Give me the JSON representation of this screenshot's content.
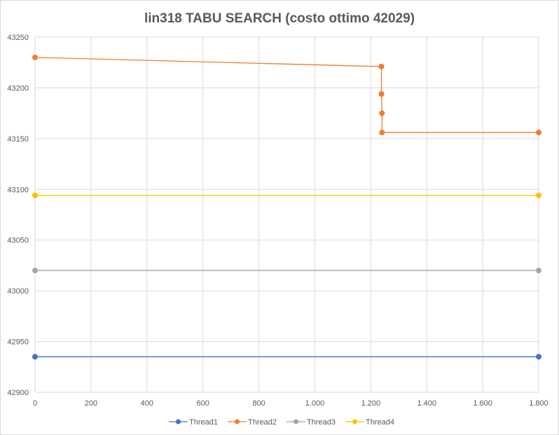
{
  "chart_data": {
    "type": "scatter",
    "title": "lin318 TABU SEARCH (costo ottimo 42029)",
    "xlabel": "",
    "ylabel": "",
    "xlim": [
      0,
      1800
    ],
    "ylim": [
      42900,
      43250
    ],
    "x_ticks": [
      0,
      200,
      400,
      600,
      800,
      1000,
      1200,
      1400,
      1600,
      1800
    ],
    "x_tick_labels": [
      "0",
      "200",
      "400",
      "600",
      "800",
      "1.000",
      "1.200",
      "1.400",
      "1.600",
      "1.800"
    ],
    "y_ticks": [
      42900,
      42950,
      43000,
      43050,
      43100,
      43150,
      43200,
      43250
    ],
    "y_tick_labels": [
      "42900",
      "42950",
      "43000",
      "43050",
      "43100",
      "43150",
      "43200",
      "43250"
    ],
    "grid": true,
    "legend_position": "bottom",
    "series": [
      {
        "name": "Thread1",
        "color": "#4472c4",
        "points": [
          [
            0,
            42935
          ],
          [
            1800,
            42935
          ]
        ]
      },
      {
        "name": "Thread2",
        "color": "#ed7d31",
        "points": [
          [
            0,
            43230
          ],
          [
            1238,
            43221
          ],
          [
            1238,
            43194
          ],
          [
            1240,
            43175
          ],
          [
            1240,
            43156
          ],
          [
            1800,
            43156
          ]
        ]
      },
      {
        "name": "Thread3",
        "color": "#a5a5a5",
        "points": [
          [
            0,
            43020
          ],
          [
            1800,
            43020
          ]
        ]
      },
      {
        "name": "Thread4",
        "color": "#ffc000",
        "points": [
          [
            0,
            43094
          ],
          [
            1800,
            43094
          ]
        ]
      }
    ]
  }
}
